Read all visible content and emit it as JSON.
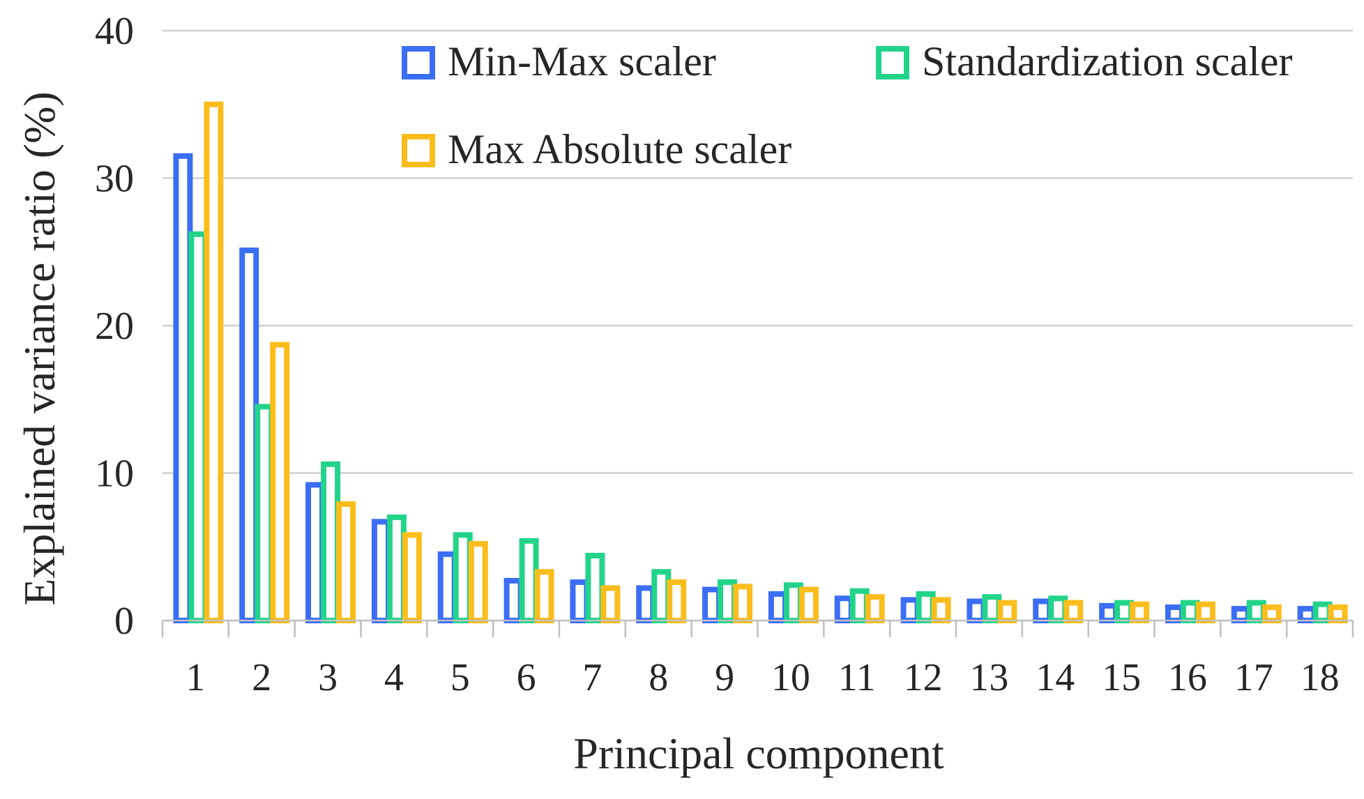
{
  "chart_data": {
    "type": "bar",
    "title": "",
    "xlabel": "Principal component",
    "ylabel": "Explained variance ratio (%)",
    "categories": [
      "1",
      "2",
      "3",
      "4",
      "5",
      "6",
      "7",
      "8",
      "9",
      "10",
      "11",
      "12",
      "13",
      "14",
      "15",
      "16",
      "17",
      "18"
    ],
    "ylim": [
      0,
      40
    ],
    "yticks": [
      "0",
      "10",
      "20",
      "30",
      "40"
    ],
    "grid": true,
    "legend_position": "top-right",
    "series": [
      {
        "name": "Min-Max scaler",
        "color": "#3b6ef5",
        "values": [
          31.5,
          25.1,
          9.2,
          6.7,
          4.5,
          2.7,
          2.6,
          2.2,
          2.1,
          1.8,
          1.5,
          1.4,
          1.3,
          1.3,
          1.0,
          0.9,
          0.8,
          0.8
        ]
      },
      {
        "name": "Standardization scaler",
        "color": "#22d48a",
        "values": [
          26.2,
          14.5,
          10.6,
          7.0,
          5.8,
          5.4,
          4.4,
          3.3,
          2.6,
          2.4,
          2.0,
          1.8,
          1.6,
          1.5,
          1.2,
          1.2,
          1.2,
          1.1
        ]
      },
      {
        "name": "Max Absolute scaler",
        "color": "#fbbd1c",
        "values": [
          35.0,
          18.7,
          7.9,
          5.8,
          5.2,
          3.3,
          2.2,
          2.6,
          2.3,
          2.1,
          1.6,
          1.4,
          1.2,
          1.2,
          1.1,
          1.1,
          0.9,
          0.9
        ]
      }
    ]
  }
}
